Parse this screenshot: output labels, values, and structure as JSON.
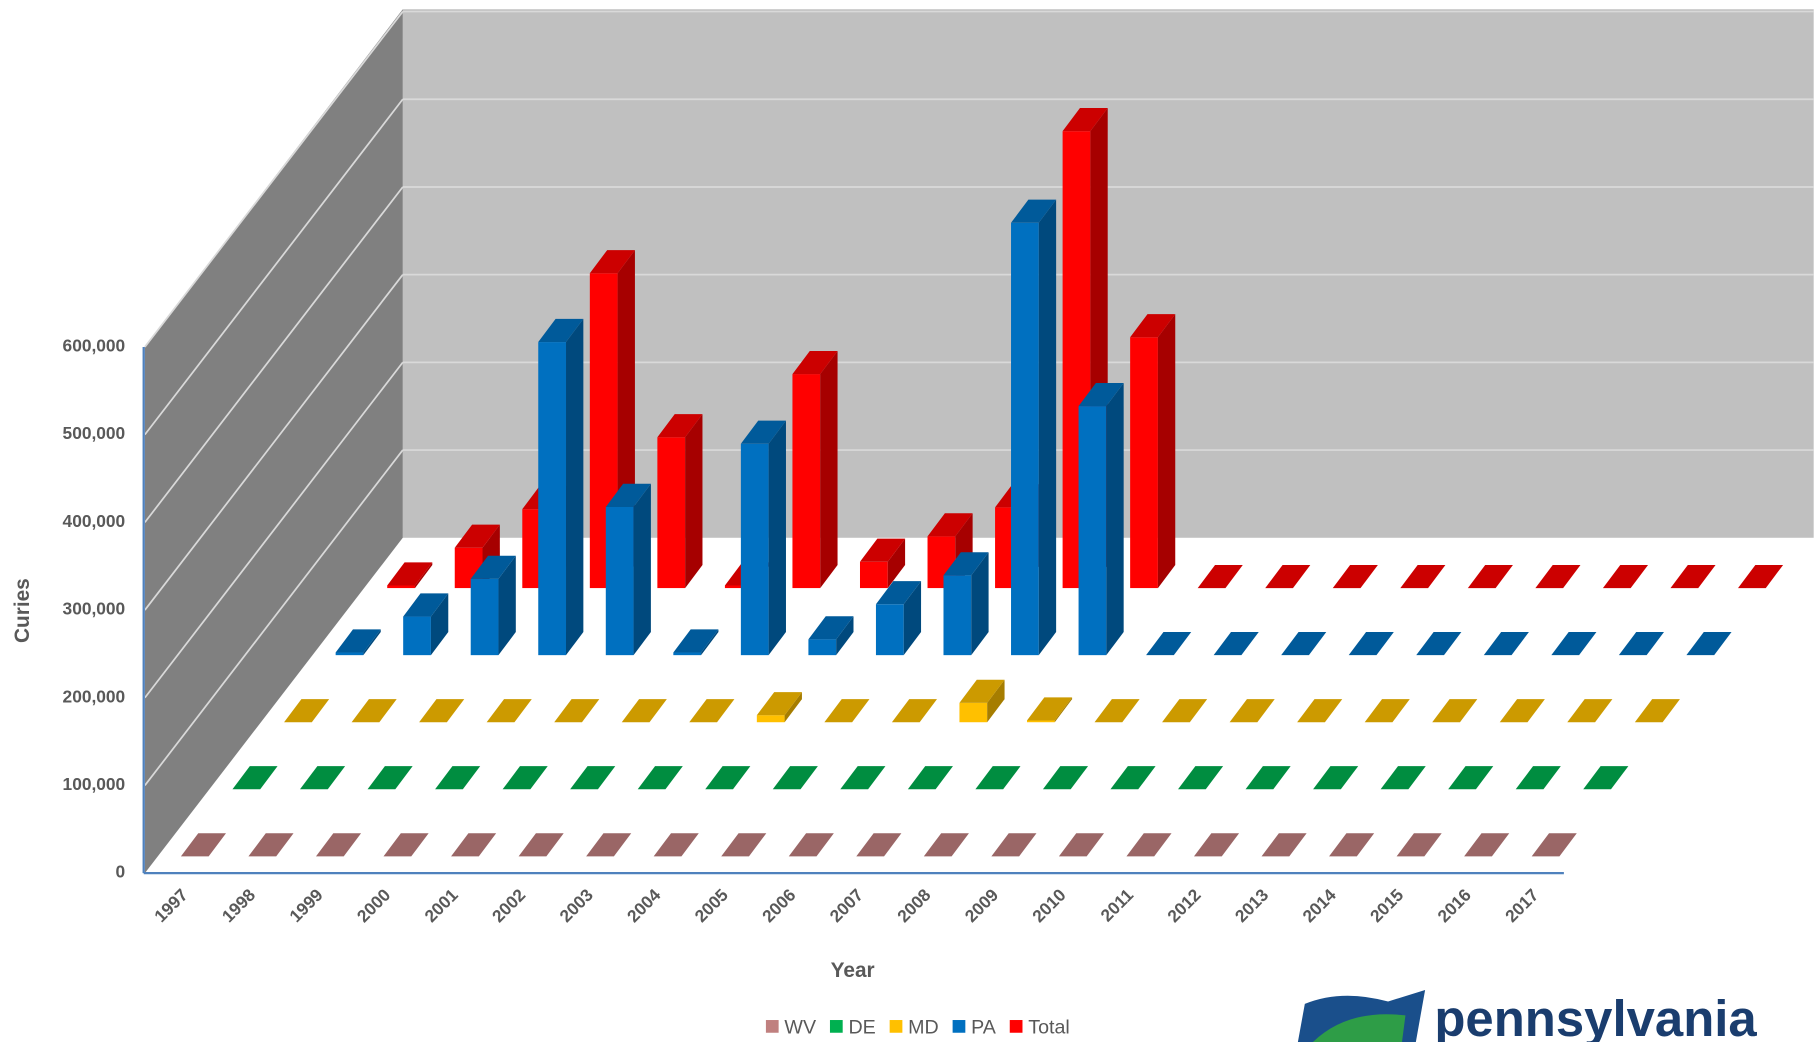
{
  "chart_data": {
    "type": "bar3d",
    "y_label": "Curies",
    "x_label": "Year",
    "categories": [
      "1997",
      "1998",
      "1999",
      "2000",
      "2001",
      "2002",
      "2003",
      "2004",
      "2005",
      "2006",
      "2007",
      "2008",
      "2009",
      "2010",
      "2011",
      "2012",
      "2013",
      "2014",
      "2015",
      "2016",
      "2017"
    ],
    "series": [
      {
        "name": "WV",
        "color": "#c0807f",
        "values": [
          0,
          0,
          0,
          0,
          0,
          0,
          0,
          0,
          0,
          0,
          0,
          0,
          0,
          0,
          0,
          0,
          0,
          0,
          0,
          0,
          0
        ]
      },
      {
        "name": "DE",
        "color": "#00b050",
        "values": [
          0,
          0,
          0,
          0,
          0,
          0,
          0,
          0,
          0,
          0,
          0,
          0,
          0,
          0,
          0,
          0,
          0,
          0,
          0,
          0,
          0
        ]
      },
      {
        "name": "MD",
        "color": "#ffc000",
        "values": [
          0,
          0,
          0,
          0,
          0,
          0,
          0,
          8000,
          0,
          0,
          22000,
          2000,
          0,
          0,
          0,
          0,
          0,
          0,
          0,
          0,
          0
        ]
      },
      {
        "name": "PA",
        "color": "#0070c0",
        "values": [
          3000,
          44000,
          87000,
          357000,
          169000,
          3000,
          241000,
          18000,
          58000,
          91000,
          493000,
          284000,
          0,
          0,
          0,
          0,
          0,
          0,
          0,
          0,
          0
        ]
      },
      {
        "name": "Total",
        "color": "#ff0000",
        "values": [
          3000,
          46000,
          90000,
          359000,
          172000,
          3000,
          244000,
          30000,
          59000,
          92000,
          521000,
          286000,
          0,
          0,
          0,
          0,
          0,
          0,
          0,
          0,
          0
        ]
      }
    ],
    "ylim": [
      0,
      600000
    ],
    "yticks": [
      0,
      {
        "value": 100000,
        "label": "100,000"
      },
      {
        "value": 200000,
        "label": "200,000"
      },
      {
        "value": 300000,
        "label": "300,000"
      },
      {
        "value": 400000,
        "label": "400,000"
      },
      {
        "value": 500000,
        "label": "500,000"
      },
      {
        "value": 600000,
        "label": "600,000"
      }
    ],
    "grid": true,
    "legend": "bottom"
  },
  "logo": "pennsylvania"
}
